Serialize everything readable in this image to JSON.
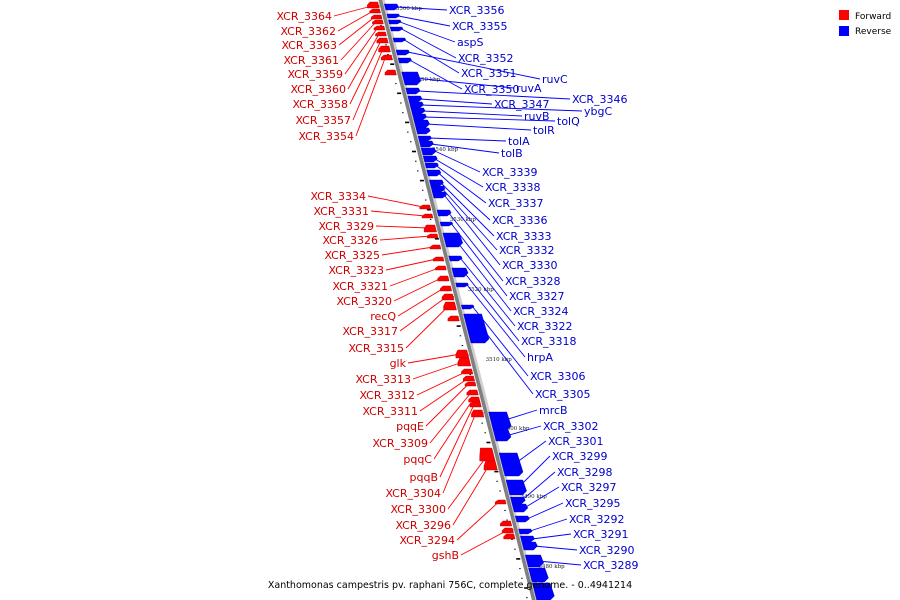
{
  "caption": "Xanthomonas campestris pv. raphani 756C, complete genome. - 0..4941214",
  "legend": [
    {
      "label": "Forward",
      "color": "#ff0000"
    },
    {
      "label": "Reverse",
      "color": "#0000ff"
    }
  ],
  "ticks": [
    "3560 kbp",
    "3550 kbp",
    "3540 kbp",
    "3530 kbp",
    "3520 kbp",
    "3510 kbp",
    "3500 kbp",
    "3490 kbp",
    "3480 kbp"
  ],
  "forward_genes": [
    "XCR_3364",
    "XCR_3362",
    "XCR_3363",
    "XCR_3361",
    "XCR_3359",
    "XCR_3360",
    "XCR_3358",
    "XCR_3357",
    "XCR_3354",
    "XCR_3334",
    "XCR_3331",
    "XCR_3329",
    "XCR_3326",
    "XCR_3325",
    "XCR_3323",
    "XCR_3321",
    "XCR_3320",
    "recQ",
    "XCR_3317",
    "XCR_3315",
    "glk",
    "XCR_3313",
    "XCR_3312",
    "XCR_3311",
    "pqqE",
    "XCR_3309",
    "pqqC",
    "pqqB",
    "XCR_3304",
    "XCR_3300",
    "XCR_3296",
    "XCR_3294",
    "gshB"
  ],
  "reverse_genes": [
    "XCR_3356",
    "XCR_3355",
    "aspS",
    "XCR_3352",
    "XCR_3351",
    "ruvC",
    "XCR_3350",
    "ruvA",
    "XCR_3346",
    "XCR_3347",
    "ybgC",
    "ruvB",
    "tolQ",
    "tolR",
    "tolA",
    "tolB",
    "XCR_3339",
    "XCR_3338",
    "XCR_3337",
    "XCR_3336",
    "XCR_3333",
    "XCR_3332",
    "XCR_3330",
    "XCR_3328",
    "XCR_3327",
    "XCR_3324",
    "XCR_3322",
    "XCR_3318",
    "hrpA",
    "XCR_3306",
    "XCR_3305",
    "mrcB",
    "XCR_3302",
    "XCR_3301",
    "XCR_3299",
    "XCR_3298",
    "XCR_3297",
    "XCR_3295",
    "XCR_3292",
    "XCR_3291",
    "XCR_3290",
    "XCR_3289"
  ]
}
